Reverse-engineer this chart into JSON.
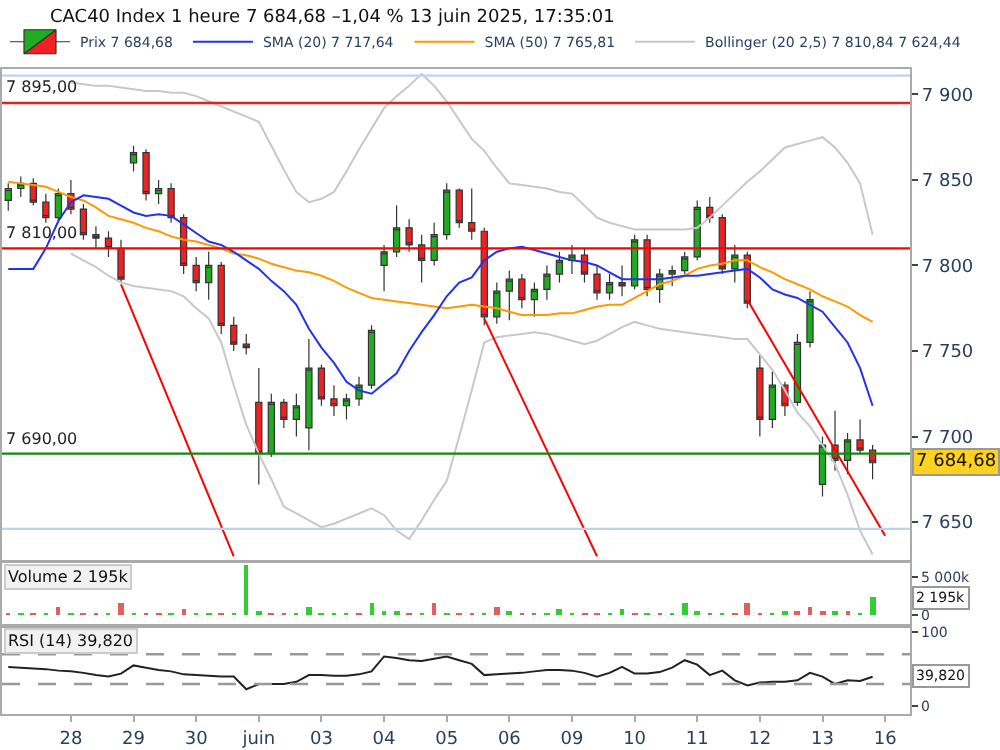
{
  "chart_data": [
    {
      "type": "candlestick",
      "title": "CAC40 Index 1 heure 7 684,68 –1,04 % 13 juin 2025, 17:35:01",
      "ylim": [
        7628,
        7915
      ],
      "tick_labels": "y",
      "legend": "top",
      "categories": [
        null,
        null,
        null,
        null,
        null,
        null,
        null,
        null,
        null,
        null,
        null,
        null,
        null,
        null,
        null,
        null,
        null,
        null,
        null,
        null,
        null,
        null,
        null,
        null,
        null,
        null,
        null,
        null,
        null,
        null,
        null,
        null,
        null,
        null,
        null,
        null,
        null,
        null,
        null,
        null,
        null,
        null,
        null,
        null,
        null,
        null,
        null,
        null,
        null,
        null,
        null,
        null,
        null,
        null,
        null,
        null,
        null,
        null,
        null,
        null,
        null,
        null,
        null,
        null,
        null,
        null,
        null,
        null,
        null,
        null,
        null
      ],
      "yticks": [
        {
          "value": 7650,
          "label": "7 650"
        },
        {
          "value": 7700,
          "label": "7 700"
        },
        {
          "value": 7750,
          "label": "7 750"
        },
        {
          "value": 7800,
          "label": "7 800"
        },
        {
          "value": 7850,
          "label": "7 850"
        },
        {
          "value": 7900,
          "label": "7 900"
        }
      ],
      "series": [
        {
          "type": "line",
          "name": "Bollinger (20 2,5) 7 810,84 7 624,44",
          "color": "#c8c8c8",
          "values": [
            null,
            null,
            null,
            null,
            null,
            7907,
            7906,
            7905,
            7905,
            7904,
            7903,
            7902,
            7902,
            7901,
            7901,
            7899,
            7896,
            7893,
            7890,
            7887,
            7884,
            7870,
            7856,
            7843,
            7837,
            7839,
            7843,
            7855,
            7868,
            7880,
            7892,
            7899,
            7905,
            7912,
            7905,
            7896,
            7885,
            7874,
            7867,
            7857,
            7848,
            7847,
            7846,
            7845,
            7843,
            7842,
            7835,
            7828,
            7825,
            7823,
            7821,
            7821,
            7821,
            7821,
            7821,
            7822,
            7828,
            7835,
            7842,
            7849,
            7855,
            7862,
            7869,
            7871,
            7873,
            7875,
            7869,
            7860,
            7848,
            7818,
            null
          ]
        },
        {
          "type": "line",
          "color": "#c8c8c8",
          "values": [
            null,
            null,
            null,
            null,
            null,
            7807,
            7803,
            7799,
            7794,
            7790,
            7788,
            7787,
            7786,
            7785,
            7782,
            7775,
            7769,
            7755,
            7730,
            7707,
            7690,
            7675,
            7659,
            7655,
            7651,
            7647,
            7649,
            7652,
            7655,
            7658,
            7654,
            7645,
            7640,
            7651,
            7663,
            7674,
            7700,
            7727,
            7755,
            7758,
            7759,
            7760,
            7761,
            7760,
            7758,
            7756,
            7754,
            7756,
            7760,
            7764,
            7767,
            7765,
            7763,
            7762,
            7761,
            7760,
            7759,
            7758,
            7757,
            7757,
            7748,
            7739,
            7727,
            7714,
            7706,
            7695,
            7684,
            7666,
            7645,
            7631,
            null
          ]
        },
        {
          "type": "line",
          "name": "SMA (50) 7 765,81",
          "color": "#ff9900",
          "values": [
            7849,
            7848,
            7847,
            7846,
            7843,
            7840,
            7838,
            7834,
            7829,
            7827,
            7825,
            7822,
            7820,
            7817,
            7815,
            7814,
            7812,
            7810,
            7807,
            7806,
            7804,
            7801,
            7799,
            7797,
            7796,
            7794,
            7791,
            7787,
            7784,
            7781,
            7780,
            7779,
            7778,
            7777,
            7776,
            7775,
            7776,
            7777,
            7776,
            7775,
            7773,
            7771,
            7771,
            7771,
            7772,
            7772,
            7774,
            7776,
            7777,
            7777,
            7781,
            7785,
            7789,
            7791,
            7794,
            7798,
            7800,
            7801,
            7803,
            7803,
            7799,
            7796,
            7792,
            7789,
            7786,
            7782,
            7779,
            7776,
            7771,
            7767,
            null
          ]
        },
        {
          "type": "line",
          "name": "SMA (20) 7 717,64",
          "color": "#2233ee",
          "values": [
            7798,
            7798,
            7798,
            7810,
            7826,
            7837,
            7841,
            7840,
            7839,
            7835,
            7831,
            7829,
            7830,
            7829,
            7824,
            7819,
            7814,
            7812,
            7808,
            7803,
            7798,
            7791,
            7785,
            7777,
            7763,
            7752,
            7743,
            7732,
            7727,
            7725,
            7731,
            7737,
            7750,
            7761,
            7771,
            7782,
            7790,
            7793,
            7803,
            7808,
            7810,
            7811,
            7809,
            7807,
            7805,
            7803,
            7802,
            7800,
            7796,
            7792,
            7792,
            7792,
            7792,
            7793,
            7794,
            7794,
            7795,
            7796,
            7797,
            7798,
            7793,
            7786,
            7783,
            7781,
            7777,
            7773,
            7764,
            7755,
            7740,
            7718,
            null
          ]
        },
        {
          "type": "line",
          "color": "#ff0000",
          "values": [
            null,
            null,
            null,
            null,
            null,
            null,
            null,
            null,
            null,
            7789,
            null,
            null,
            null,
            null,
            null,
            null,
            null,
            null,
            7630,
            null,
            null,
            null,
            null,
            null,
            null,
            null,
            null,
            null,
            null,
            null,
            null,
            null,
            null,
            null,
            null,
            null,
            null,
            null,
            null,
            null,
            null,
            null,
            null,
            null,
            null,
            null,
            null,
            null,
            null,
            null,
            null,
            null,
            null,
            null,
            null,
            null,
            null,
            null,
            null,
            null,
            null,
            null,
            null,
            null,
            null,
            null,
            null,
            null,
            null,
            null,
            null
          ]
        },
        {
          "type": "line",
          "color": "#ff0000",
          "values": [
            null,
            null,
            null,
            null,
            null,
            null,
            null,
            null,
            null,
            null,
            null,
            null,
            null,
            null,
            null,
            null,
            null,
            null,
            null,
            null,
            null,
            null,
            null,
            null,
            null,
            null,
            null,
            null,
            null,
            null,
            null,
            null,
            null,
            null,
            null,
            null,
            null,
            null,
            7769,
            null,
            null,
            null,
            null,
            null,
            null,
            null,
            null,
            7630,
            null,
            null,
            null,
            null,
            null,
            null,
            null,
            null,
            null,
            null,
            null,
            null,
            null,
            null,
            null,
            null,
            null,
            null,
            null,
            null,
            null,
            null,
            null
          ]
        },
        {
          "type": "line",
          "color": "#ff0000",
          "values": [
            null,
            null,
            null,
            null,
            null,
            null,
            null,
            null,
            null,
            null,
            null,
            null,
            null,
            null,
            null,
            null,
            null,
            null,
            null,
            null,
            null,
            null,
            null,
            null,
            null,
            null,
            null,
            null,
            null,
            null,
            null,
            null,
            null,
            null,
            null,
            null,
            null,
            null,
            null,
            null,
            null,
            null,
            null,
            null,
            null,
            null,
            null,
            null,
            null,
            null,
            null,
            null,
            null,
            null,
            null,
            null,
            null,
            null,
            null,
            7780,
            null,
            null,
            null,
            null,
            null,
            null,
            null,
            null,
            null,
            null,
            7642
          ]
        },
        {
          "type": "candlestick",
          "name": "Prix 7 684,68",
          "ohlc": [
            [
              7838,
              7848,
              7832,
              7845
            ],
            [
              7845,
              7852,
              7840,
              7848
            ],
            [
              7848,
              7851,
              7835,
              7837
            ],
            [
              7837,
              7842,
              7825,
              7828
            ],
            [
              7828,
              7845,
              7825,
              7842
            ],
            [
              7842,
              7850,
              7830,
              7833
            ],
            [
              7833,
              7836,
              7815,
              7818
            ],
            [
              7818,
              7823,
              7810,
              7816
            ],
            [
              7816,
              7820,
              7805,
              7810
            ],
            [
              7810,
              7815,
              7790,
              7792
            ],
            [
              7860,
              7870,
              7855,
              7866
            ],
            [
              7866,
              7868,
              7838,
              7842
            ],
            [
              7842,
              7850,
              7836,
              7845
            ],
            [
              7845,
              7848,
              7825,
              7828
            ],
            [
              7828,
              7830,
              7795,
              7800
            ],
            [
              7800,
              7805,
              7785,
              7790
            ],
            [
              7790,
              7808,
              7780,
              7800
            ],
            [
              7800,
              7802,
              7760,
              7765
            ],
            [
              7765,
              7770,
              7750,
              7754
            ],
            [
              7754,
              7760,
              7748,
              7752
            ],
            [
              7720,
              7740,
              7672,
              7690
            ],
            [
              7690,
              7725,
              7688,
              7720
            ],
            [
              7720,
              7722,
              7705,
              7710
            ],
            [
              7710,
              7725,
              7700,
              7718
            ],
            [
              7705,
              7757,
              7692,
              7740
            ],
            [
              7740,
              7742,
              7718,
              7722
            ],
            [
              7722,
              7730,
              7712,
              7718
            ],
            [
              7718,
              7725,
              7710,
              7722
            ],
            [
              7722,
              7735,
              7718,
              7730
            ],
            [
              7730,
              7765,
              7728,
              7762
            ],
            [
              7800,
              7812,
              7785,
              7808
            ],
            [
              7808,
              7835,
              7805,
              7822
            ],
            [
              7822,
              7827,
              7808,
              7812
            ],
            [
              7812,
              7818,
              7790,
              7803
            ],
            [
              7803,
              7825,
              7800,
              7818
            ],
            [
              7818,
              7848,
              7815,
              7844
            ],
            [
              7844,
              7845,
              7822,
              7825
            ],
            [
              7825,
              7845,
              7815,
              7820
            ],
            [
              7820,
              7822,
              7765,
              7770
            ],
            [
              7770,
              7790,
              7766,
              7785
            ],
            [
              7785,
              7797,
              7768,
              7792
            ],
            [
              7792,
              7795,
              7775,
              7780
            ],
            [
              7780,
              7790,
              7770,
              7786
            ],
            [
              7786,
              7800,
              7780,
              7795
            ],
            [
              7795,
              7808,
              7790,
              7803
            ],
            [
              7803,
              7812,
              7795,
              7806
            ],
            [
              7806,
              7810,
              7790,
              7795
            ],
            [
              7795,
              7800,
              7780,
              7784
            ],
            [
              7784,
              7795,
              7780,
              7790
            ],
            [
              7790,
              7800,
              7782,
              7788
            ],
            [
              7788,
              7818,
              7786,
              7815
            ],
            [
              7815,
              7818,
              7782,
              7786
            ],
            [
              7786,
              7798,
              7778,
              7795
            ],
            [
              7795,
              7800,
              7788,
              7797
            ],
            [
              7797,
              7808,
              7795,
              7805
            ],
            [
              7805,
              7838,
              7803,
              7834
            ],
            [
              7834,
              7840,
              7825,
              7828
            ],
            [
              7828,
              7830,
              7795,
              7798
            ],
            [
              7798,
              7812,
              7790,
              7806
            ],
            [
              7806,
              7808,
              7775,
              7778
            ],
            [
              7740,
              7748,
              7700,
              7710
            ],
            [
              7710,
              7738,
              7705,
              7730
            ],
            [
              7730,
              7732,
              7712,
              7718
            ],
            [
              7720,
              7760,
              7718,
              7755
            ],
            [
              7755,
              7785,
              7752,
              7780
            ],
            [
              7672,
              7700,
              7665,
              7695
            ],
            [
              7695,
              7715,
              7680,
              7686
            ],
            [
              7686,
              7702,
              7678,
              7698
            ],
            [
              7698,
              7710,
              7690,
              7692
            ],
            [
              7692,
              7695,
              7675,
              7684.68
            ],
            null
          ]
        }
      ],
      "ref_lines": [
        {
          "axis": "y",
          "value": 7895,
          "label": "7 895,00",
          "color": "#dd2222"
        },
        {
          "axis": "y",
          "value": 7810,
          "label": "7 810,00",
          "color": "#ff0000"
        },
        {
          "axis": "y",
          "value": 7690,
          "label": "7 690,00",
          "color": "#118811"
        },
        {
          "axis": "y",
          "value": 7911,
          "color": "#c0d0f0"
        },
        {
          "axis": "y",
          "value": 7646,
          "color": "#c0d0f0"
        }
      ],
      "annotations": [
        {
          "text": "7 684,68",
          "y": 7684.68
        }
      ]
    },
    {
      "type": "bar",
      "title": "Volume 2 195k",
      "ylim": [
        -1300,
        6850
      ],
      "tick_labels": "y",
      "categories": [
        null,
        null,
        null,
        null,
        null,
        null,
        null,
        null,
        null,
        null,
        null,
        null,
        null,
        null,
        null,
        null,
        null,
        null,
        null,
        null,
        null,
        null,
        null,
        null,
        null,
        null,
        null,
        null,
        null,
        null,
        null,
        null,
        null,
        null,
        null,
        null,
        null,
        null,
        null,
        null,
        null,
        null,
        null,
        null,
        null,
        null,
        null,
        null,
        null,
        null,
        null,
        null,
        null,
        null,
        null,
        null,
        null,
        null,
        null,
        null,
        null,
        null,
        null,
        null,
        null,
        null,
        null,
        null,
        null,
        null,
        null
      ],
      "yticks": [
        {
          "value": 0,
          "label": "0"
        },
        {
          "value": 5000,
          "label": "5 000k"
        }
      ],
      "values": [
        150,
        150,
        100,
        150,
        1000,
        150,
        100,
        150,
        150,
        1600,
        150,
        100,
        150,
        150,
        800,
        150,
        100,
        150,
        150,
        6600,
        200,
        150,
        150,
        150,
        1100,
        150,
        150,
        100,
        150,
        1500,
        250,
        200,
        150,
        150,
        1400,
        150,
        150,
        150,
        150,
        900,
        300,
        150,
        150,
        150,
        700,
        150,
        150,
        150,
        150,
        600,
        150,
        150,
        150,
        150,
        1500,
        200,
        150,
        150,
        150,
        1500,
        150,
        150,
        200,
        200,
        1100,
        500,
        300,
        200,
        150,
        2195,
        null
      ],
      "colors": [
        "#e06060",
        "#33cc33",
        "#e06060",
        "#33cc33",
        "#e06060",
        "#33cc33",
        "#e06060",
        "#e06060",
        "#33cc33",
        "#e06060",
        "#33cc33",
        "#e06060",
        "#e06060",
        "#33cc33",
        "#e06060",
        "#33cc33",
        "#33cc33",
        "#e06060",
        "#33cc33",
        "#33cc33",
        "#33cc33",
        "#e06060",
        "#e06060",
        "#33cc33",
        "#33cc33",
        "#33cc33",
        "#33cc33",
        "#33cc33",
        "#e06060",
        "#33cc33",
        "#33cc33",
        "#33cc33",
        "#e06060",
        "#33cc33",
        "#e06060",
        "#33cc33",
        "#e06060",
        "#e06060",
        "#33cc33",
        "#e06060",
        "#33cc33",
        "#e06060",
        "#e06060",
        "#33cc33",
        "#33cc33",
        "#33cc33",
        "#e06060",
        "#e06060",
        "#33cc33",
        "#33cc33",
        "#e06060",
        "#33cc33",
        "#e06060",
        "#33cc33",
        "#33cc33",
        "#33cc33",
        "#e06060",
        "#33cc33",
        "#e06060",
        "#e06060",
        "#e06060",
        "#33cc33",
        "#33cc33",
        "#e06060",
        "#e06060",
        "#e06060",
        "#33cc33",
        "#e06060",
        "#33cc33",
        "#33cc33",
        "#33cc33"
      ],
      "annotations": [
        {
          "text": "2 195k",
          "y": 2195
        }
      ]
    },
    {
      "type": "line",
      "title": "RSI (14) 39,820",
      "ylim": [
        -10.5,
        105
      ],
      "yticks": [
        0,
        100
      ],
      "categories": [
        null,
        null,
        null,
        null,
        null,
        "28",
        null,
        null,
        null,
        null,
        "29",
        null,
        null,
        null,
        null,
        "30",
        null,
        null,
        null,
        null,
        "juin",
        null,
        null,
        null,
        null,
        "03",
        null,
        null,
        null,
        null,
        "04",
        null,
        null,
        null,
        null,
        "05",
        null,
        null,
        null,
        null,
        "06",
        null,
        null,
        null,
        null,
        "09",
        null,
        null,
        null,
        null,
        "10",
        null,
        null,
        null,
        null,
        "11",
        null,
        null,
        null,
        null,
        "12",
        null,
        null,
        null,
        null,
        "13",
        null,
        null,
        null,
        null,
        "16"
      ],
      "series": [
        {
          "color": "#222222",
          "values": [
            53,
            52,
            51,
            50,
            48,
            47,
            45,
            42,
            40,
            44,
            55,
            52,
            49,
            47,
            43,
            42,
            41,
            40,
            40,
            23,
            30,
            30,
            30,
            33,
            42,
            42,
            41,
            41,
            43,
            47,
            67,
            65,
            62,
            61,
            64,
            67,
            62,
            57,
            42,
            43,
            44,
            45,
            47,
            49,
            49,
            48,
            45,
            40,
            45,
            53,
            44,
            44,
            46,
            52,
            62,
            56,
            42,
            48,
            35,
            28,
            32,
            33,
            33,
            35,
            45,
            40,
            30,
            35,
            34,
            39.8,
            null
          ]
        }
      ],
      "ref_lines": [
        {
          "axis": "y",
          "value": 70,
          "color": "#999999",
          "line_style": "dashed"
        },
        {
          "axis": "y",
          "value": 30,
          "color": "#999999",
          "line_style": "dashed"
        }
      ],
      "annotations": [
        {
          "text": "39,820",
          "y": 39.8
        }
      ]
    }
  ]
}
